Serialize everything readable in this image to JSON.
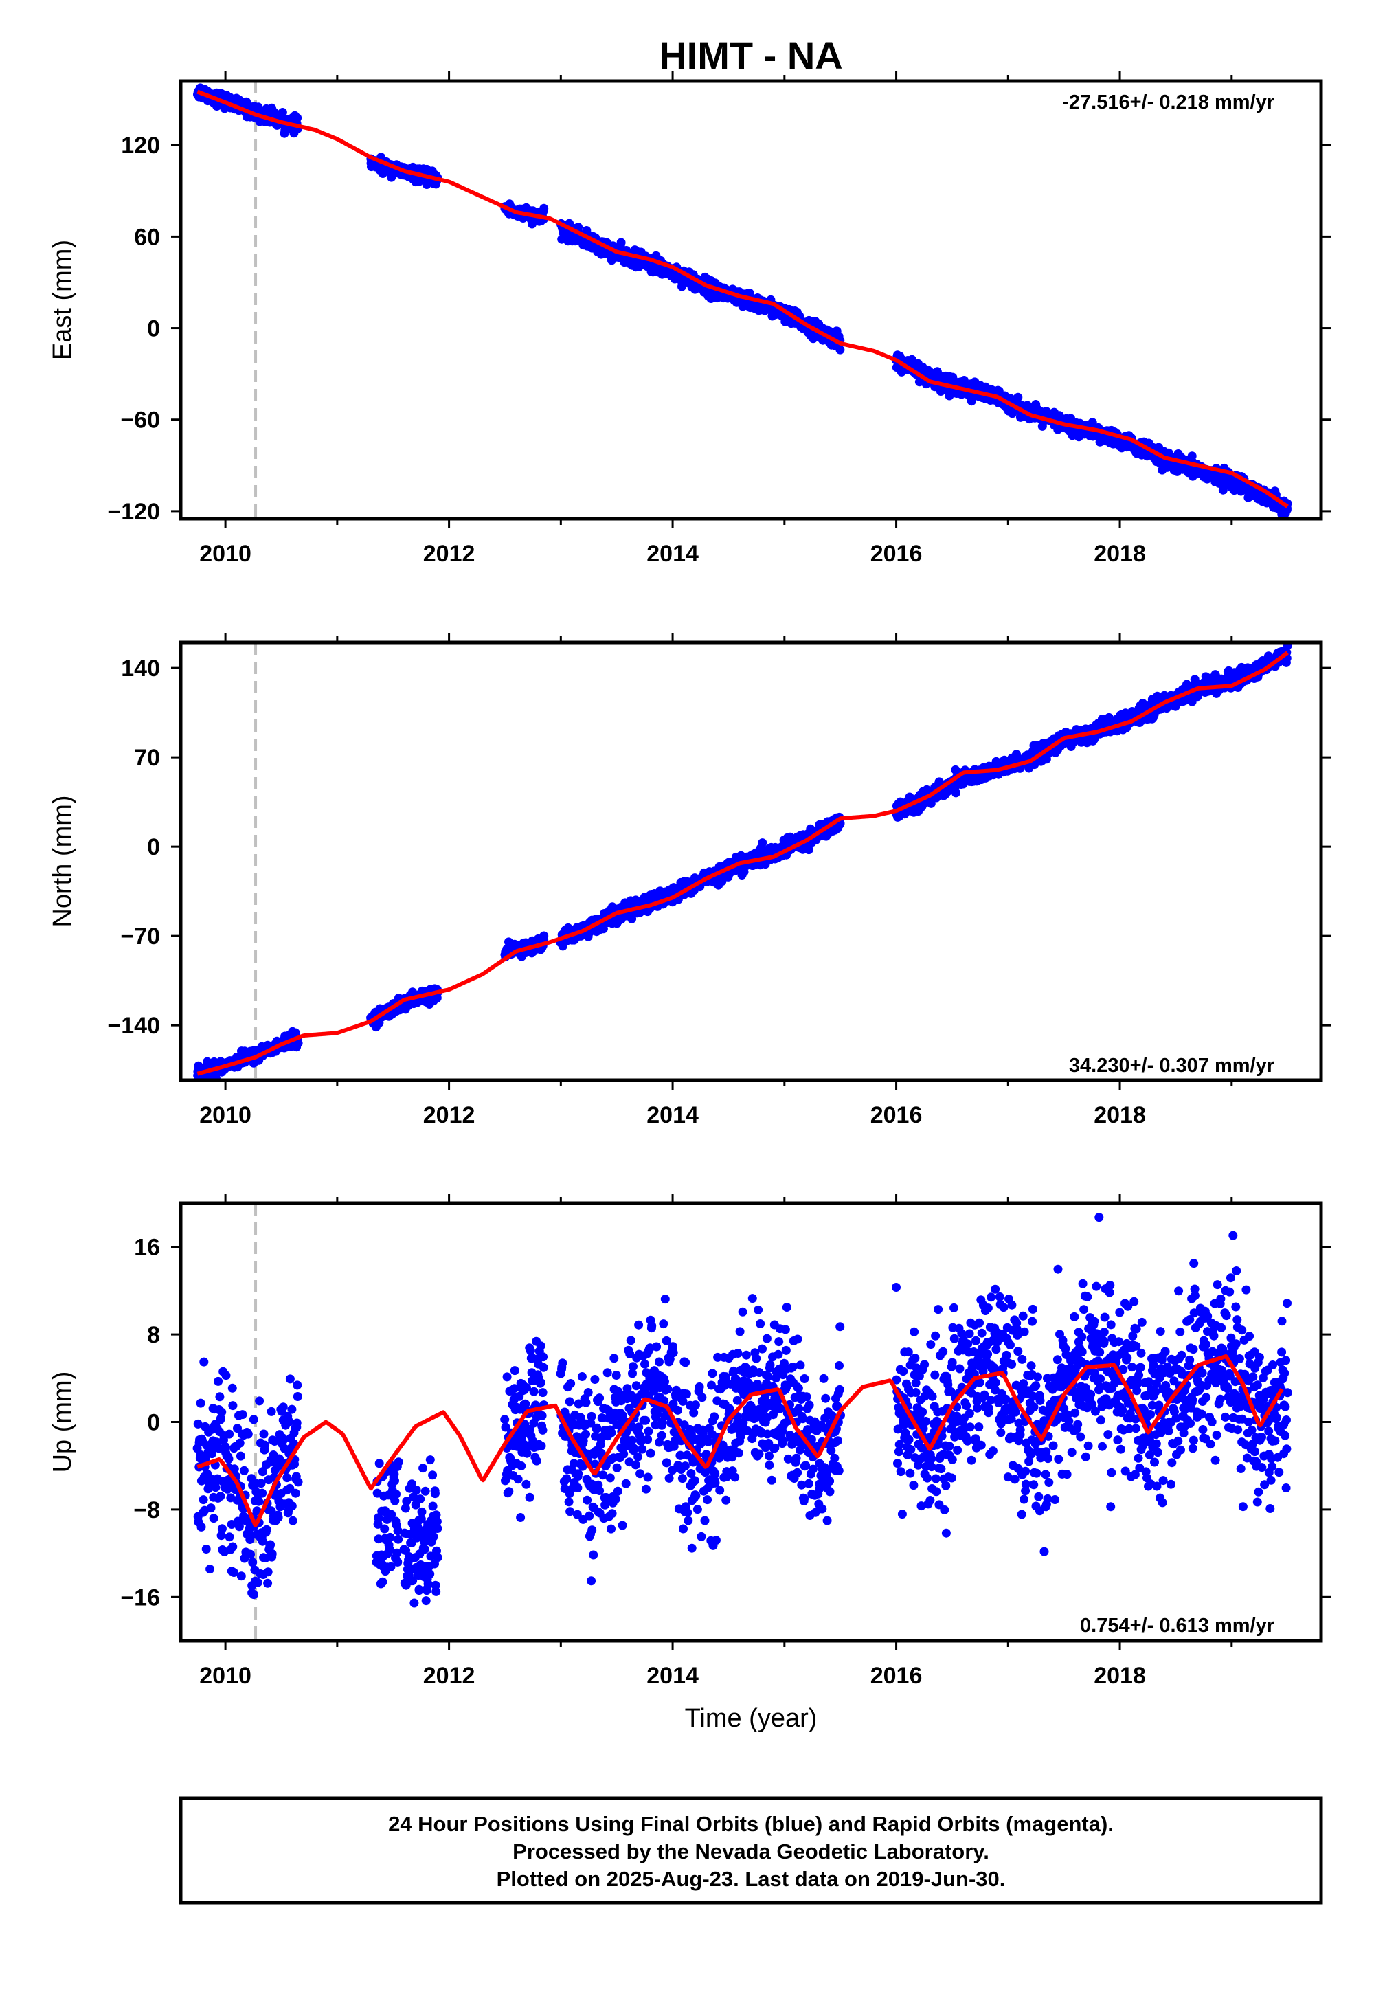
{
  "title": "HIMT - NA",
  "colors": {
    "points": "#0000ff",
    "model": "#ff0000",
    "event_line": "#c0c0c0",
    "frame": "#000000"
  },
  "chart_data": [
    {
      "type": "scatter",
      "name": "east",
      "ylabel": "East (mm)",
      "xlim": [
        2009.6,
        2019.8
      ],
      "ylim": [
        -125,
        162
      ],
      "x_ticks": [
        2010,
        2012,
        2014,
        2016,
        2018
      ],
      "y_ticks": [
        -120,
        -60,
        0,
        60,
        120
      ],
      "y_tick_labels": [
        "−120",
        "−60",
        "0",
        "60",
        "120"
      ],
      "rate_label": "-27.516+/- 0.218 mm/yr",
      "event_line_x": 2010.27,
      "model_curve": {
        "x": [
          2009.75,
          2010.0,
          2010.27,
          2010.5,
          2010.8,
          2011.0,
          2011.3,
          2011.6,
          2012.0,
          2012.3,
          2012.6,
          2012.9,
          2013.2,
          2013.5,
          2013.8,
          2014.0,
          2014.3,
          2014.6,
          2014.9,
          2015.2,
          2015.5,
          2015.8,
          2016.0,
          2016.3,
          2016.6,
          2016.9,
          2017.2,
          2017.5,
          2017.8,
          2018.1,
          2018.4,
          2018.7,
          2019.0,
          2019.3,
          2019.5
        ],
        "y": [
          155,
          148,
          140,
          135,
          130,
          124,
          112,
          103,
          96,
          86,
          76,
          72,
          61,
          50,
          45,
          40,
          28,
          21,
          16,
          2,
          -10,
          -15,
          -21,
          -35,
          -40,
          -45,
          -57,
          -63,
          -67,
          -73,
          -85,
          -90,
          -95,
          -107,
          -117
        ]
      },
      "observations": {
        "segments": [
          {
            "x": [
              2009.75,
              2010.65
            ],
            "y": [
              156,
              133
            ],
            "noise": 2.2
          },
          {
            "x": [
              2011.3,
              2011.9
            ],
            "y": [
              105,
              98
            ],
            "noise": 2.0
          },
          {
            "x": [
              2012.5,
              2012.85
            ],
            "y": [
              78,
              72
            ],
            "noise": 2.0
          },
          {
            "x": [
              2013.0,
              2015.5
            ],
            "y": [
              62,
              -7
            ],
            "noise": 2.5
          },
          {
            "x": [
              2016.0,
              2019.5
            ],
            "y": [
              -21,
              -118
            ],
            "noise": 2.5
          }
        ]
      }
    },
    {
      "type": "scatter",
      "name": "north",
      "ylabel": "North (mm)",
      "xlim": [
        2009.6,
        2019.8
      ],
      "ylim": [
        -183,
        160
      ],
      "x_ticks": [
        2010,
        2012,
        2014,
        2016,
        2018
      ],
      "y_ticks": [
        -140,
        -70,
        0,
        70,
        140
      ],
      "y_tick_labels": [
        "−140",
        "−70",
        "0",
        "70",
        "140"
      ],
      "rate_label": "34.230+/- 0.307 mm/yr",
      "event_line_x": 2010.27,
      "model_curve": {
        "x": [
          2009.75,
          2010.0,
          2010.27,
          2010.5,
          2010.7,
          2011.0,
          2011.3,
          2011.6,
          2012.0,
          2012.3,
          2012.6,
          2012.9,
          2013.2,
          2013.5,
          2013.8,
          2014.0,
          2014.3,
          2014.6,
          2014.9,
          2015.2,
          2015.5,
          2015.8,
          2016.0,
          2016.3,
          2016.6,
          2016.9,
          2017.2,
          2017.5,
          2017.8,
          2018.1,
          2018.4,
          2018.7,
          2019.0,
          2019.3,
          2019.5
        ],
        "y": [
          -178,
          -172,
          -165,
          -155,
          -148,
          -146,
          -137,
          -120,
          -112,
          -100,
          -82,
          -75,
          -66,
          -52,
          -46,
          -40,
          -25,
          -13,
          -8,
          5,
          22,
          24,
          28,
          40,
          58,
          60,
          67,
          85,
          90,
          98,
          113,
          124,
          126,
          139,
          152
        ]
      },
      "observations": {
        "segments": [
          {
            "x": [
              2009.75,
              2010.65
            ],
            "y": [
              -178,
              -150
            ],
            "noise": 2.5
          },
          {
            "x": [
              2011.3,
              2011.9
            ],
            "y": [
              -135,
              -115
            ],
            "noise": 2.5
          },
          {
            "x": [
              2012.5,
              2012.85
            ],
            "y": [
              -82,
              -75
            ],
            "noise": 2.5
          },
          {
            "x": [
              2013.0,
              2015.5
            ],
            "y": [
              -72,
              18
            ],
            "noise": 3.0
          },
          {
            "x": [
              2016.0,
              2019.5
            ],
            "y": [
              28,
              152
            ],
            "noise": 3.0
          }
        ]
      }
    },
    {
      "type": "scatter",
      "name": "up",
      "ylabel": "Up (mm)",
      "xlabel": "Time (year)",
      "xlim": [
        2009.6,
        2019.8
      ],
      "ylim": [
        -20,
        20
      ],
      "x_ticks": [
        2010,
        2012,
        2014,
        2016,
        2018
      ],
      "y_ticks": [
        -16,
        -8,
        0,
        8,
        16
      ],
      "y_tick_labels": [
        "−16",
        "−8",
        "0",
        "8",
        "16"
      ],
      "rate_label": "0.754+/- 0.613 mm/yr",
      "event_line_x": 2010.27,
      "model_curve": {
        "x": [
          2009.75,
          2009.95,
          2010.1,
          2010.27,
          2010.45,
          2010.7,
          2010.9,
          2011.05,
          2011.3,
          2011.5,
          2011.7,
          2011.95,
          2012.1,
          2012.3,
          2012.5,
          2012.7,
          2012.95,
          2013.1,
          2013.3,
          2013.5,
          2013.75,
          2013.95,
          2014.1,
          2014.3,
          2014.5,
          2014.7,
          2014.95,
          2015.1,
          2015.3,
          2015.5,
          2015.7,
          2015.95,
          2016.1,
          2016.3,
          2016.5,
          2016.7,
          2016.95,
          2017.1,
          2017.3,
          2017.5,
          2017.7,
          2017.95,
          2018.1,
          2018.25,
          2018.45,
          2018.7,
          2018.95,
          2019.1,
          2019.25,
          2019.45
        ],
        "y": [
          -4.1,
          -3.4,
          -5.5,
          -9.5,
          -5.5,
          -1.4,
          0.0,
          -1.1,
          -6.1,
          -3.2,
          -0.4,
          0.9,
          -1.3,
          -5.4,
          -2.0,
          1.0,
          1.5,
          -1.5,
          -4.8,
          -1.5,
          2.1,
          1.4,
          -1.5,
          -4.2,
          0.2,
          2.5,
          3.0,
          -0.5,
          -3.2,
          1.0,
          3.2,
          3.8,
          1.0,
          -2.5,
          1.5,
          4.0,
          4.5,
          1.5,
          -1.6,
          2.5,
          5.0,
          5.2,
          2.5,
          -1.0,
          2.0,
          5.2,
          6.0,
          3.5,
          -0.4,
          3.0
        ]
      },
      "observations": {
        "segments": [
          {
            "x": [
              2009.75,
              2010.65
            ],
            "noise": 3.8
          },
          {
            "x": [
              2011.35,
              2011.55
            ],
            "noise": 3.0,
            "offset": -5.5
          },
          {
            "x": [
              2011.6,
              2011.9
            ],
            "noise": 3.0,
            "offset": -10.5
          },
          {
            "x": [
              2012.5,
              2012.85
            ],
            "noise": 3.0
          },
          {
            "x": [
              2013.0,
              2015.5
            ],
            "noise": 3.5
          },
          {
            "x": [
              2016.0,
              2019.5
            ],
            "noise": 3.8
          }
        ]
      }
    }
  ],
  "footer": {
    "line1": "24 Hour Positions Using Final Orbits (blue) and Rapid Orbits (magenta).",
    "line2": "Processed by the Nevada Geodetic Laboratory.",
    "line3": "Plotted on 2025-Aug-23. Last data on 2019-Jun-30."
  }
}
